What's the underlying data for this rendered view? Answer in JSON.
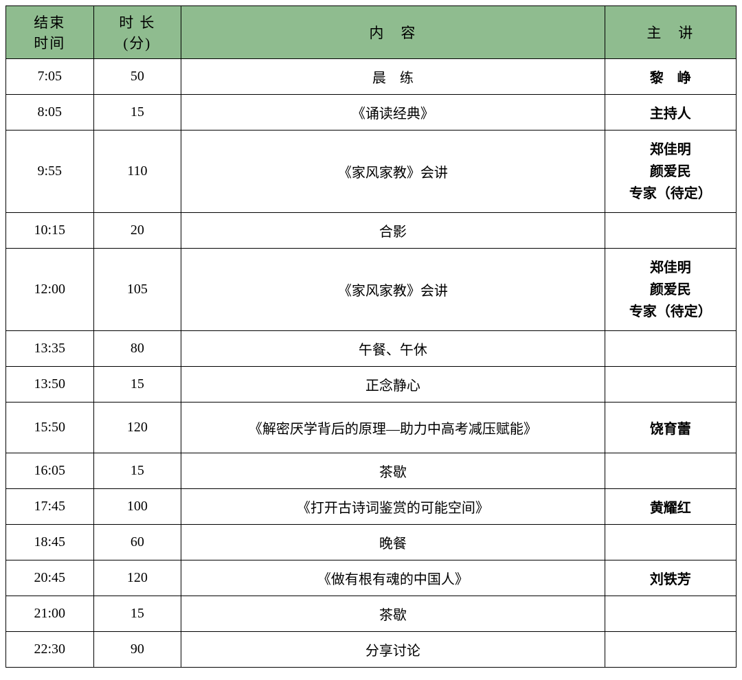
{
  "table": {
    "header_bg": "#8fbc8f",
    "border_color": "#000000",
    "columns": {
      "end_time_l1": "结束",
      "end_time_l2": "时间",
      "duration_l1": "时 长",
      "duration_l2": "(分)",
      "content": "内　容",
      "speaker": "主　讲"
    },
    "rows": [
      {
        "end_time": "7:05",
        "duration": "50",
        "content": "晨　练",
        "speaker": "黎　峥",
        "speaker_bold": true
      },
      {
        "end_time": "8:05",
        "duration": "15",
        "content": "《诵读经典》",
        "speaker": "主持人",
        "speaker_bold": true
      },
      {
        "end_time": "9:55",
        "duration": "110",
        "content": "《家风家教》会讲",
        "speaker_l1": "郑佳明",
        "speaker_l2": "颜爱民",
        "speaker_l3": "专家（待定）",
        "speaker_bold": true,
        "tall": true
      },
      {
        "end_time": "10:15",
        "duration": "20",
        "content": "合影",
        "speaker": ""
      },
      {
        "end_time": "12:00",
        "duration": "105",
        "content": "《家风家教》会讲",
        "speaker_l1": "郑佳明",
        "speaker_l2": "颜爱民",
        "speaker_l3": "专家（待定）",
        "speaker_bold": true,
        "tall": true
      },
      {
        "end_time": "13:35",
        "duration": "80",
        "content": "午餐、午休",
        "speaker": ""
      },
      {
        "end_time": "13:50",
        "duration": "15",
        "content": "正念静心",
        "speaker": ""
      },
      {
        "end_time": "15:50",
        "duration": "120",
        "content": "《解密厌学背后的原理—助力中高考减压赋能》",
        "speaker": "饶育蕾",
        "speaker_bold": true,
        "medium": true
      },
      {
        "end_time": "16:05",
        "duration": "15",
        "content": "茶歇",
        "speaker": ""
      },
      {
        "end_time": "17:45",
        "duration": "100",
        "content": "《打开古诗词鉴赏的可能空间》",
        "speaker": "黄耀红",
        "speaker_bold": true
      },
      {
        "end_time": "18:45",
        "duration": "60",
        "content": "晚餐",
        "speaker": ""
      },
      {
        "end_time": "20:45",
        "duration": "120",
        "content": "《做有根有魂的中国人》",
        "speaker": "刘铁芳",
        "speaker_bold": true
      },
      {
        "end_time": "21:00",
        "duration": "15",
        "content": "茶歇",
        "speaker": ""
      },
      {
        "end_time": "22:30",
        "duration": "90",
        "content": "分享讨论",
        "speaker": ""
      }
    ]
  }
}
